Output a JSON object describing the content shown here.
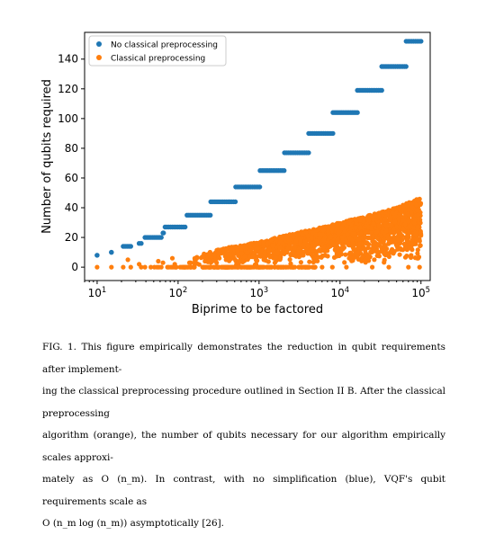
{
  "chart_data": {
    "type": "scatter",
    "xlabel": "Biprime to be factored",
    "ylabel": "Number of qubits required",
    "xscale": "log",
    "xlim": [
      7,
      130000
    ],
    "ylim": [
      -9,
      158
    ],
    "xticks": [
      {
        "value": 10,
        "base": "10",
        "exp": "1"
      },
      {
        "value": 100,
        "base": "10",
        "exp": "2"
      },
      {
        "value": 1000,
        "base": "10",
        "exp": "3"
      },
      {
        "value": 10000,
        "base": "10",
        "exp": "4"
      },
      {
        "value": 100000,
        "base": "10",
        "exp": "5"
      }
    ],
    "yticks": [
      0,
      20,
      40,
      60,
      80,
      100,
      120,
      140
    ],
    "grid": false,
    "legend": {
      "placement": "top-left",
      "entries": [
        {
          "label": "No classical preprocessing",
          "color": "#1f77b4"
        },
        {
          "label": "Classical preprocessing",
          "color": "#ff7f0e"
        }
      ]
    },
    "series": [
      {
        "name": "No classical preprocessing",
        "color": "#1f77b4",
        "segments": [
          {
            "x_from": 10,
            "x_to": 10,
            "y": 8
          },
          {
            "x_from": 15,
            "x_to": 15,
            "y": 10
          },
          {
            "x_from": 21,
            "x_to": 26,
            "y": 14
          },
          {
            "x_from": 33,
            "x_to": 35,
            "y": 16
          },
          {
            "x_from": 39,
            "x_to": 62,
            "y": 20
          },
          {
            "x_from": 65,
            "x_to": 66,
            "y": 23
          },
          {
            "x_from": 69,
            "x_to": 122,
            "y": 27
          },
          {
            "x_from": 129,
            "x_to": 250,
            "y": 35
          },
          {
            "x_from": 253,
            "x_to": 510,
            "y": 44
          },
          {
            "x_from": 515,
            "x_to": 1020,
            "y": 54
          },
          {
            "x_from": 1030,
            "x_to": 2040,
            "y": 65
          },
          {
            "x_from": 2060,
            "x_to": 4090,
            "y": 77
          },
          {
            "x_from": 4100,
            "x_to": 8180,
            "y": 90
          },
          {
            "x_from": 8200,
            "x_to": 16380,
            "y": 104
          },
          {
            "x_from": 16400,
            "x_to": 32760,
            "y": 119
          },
          {
            "x_from": 32800,
            "x_to": 65500,
            "y": 135
          },
          {
            "x_from": 65600,
            "x_to": 100000,
            "y": 152
          }
        ]
      },
      {
        "name": "Classical preprocessing",
        "color": "#ff7f0e",
        "points": [
          [
            10,
            0
          ],
          [
            15,
            0
          ],
          [
            21,
            0
          ],
          [
            26,
            0
          ],
          [
            35,
            0
          ],
          [
            39,
            0
          ],
          [
            46,
            0
          ],
          [
            51,
            0
          ],
          [
            55,
            0
          ],
          [
            58,
            0
          ],
          [
            62,
            0
          ],
          [
            74,
            0
          ],
          [
            77,
            0
          ],
          [
            82,
            0
          ],
          [
            86,
            0
          ],
          [
            91,
            0
          ],
          [
            94,
            0
          ],
          [
            95,
            0
          ],
          [
            106,
            0
          ],
          [
            111,
            0
          ],
          [
            115,
            0
          ],
          [
            118,
            0
          ],
          [
            119,
            0
          ],
          [
            122,
            0
          ],
          [
            123,
            0
          ],
          [
            129,
            0
          ],
          [
            133,
            0
          ],
          [
            141,
            0
          ],
          [
            143,
            0
          ],
          [
            145,
            0
          ],
          [
            155,
            0
          ],
          [
            158,
            0
          ],
          [
            159,
            0
          ],
          [
            24,
            5
          ],
          [
            57,
            4
          ],
          [
            85,
            6
          ],
          [
            143,
            3
          ],
          [
            33,
            2
          ],
          [
            65,
            3
          ],
          [
            91,
            2
          ],
          [
            161,
            2
          ],
          [
            201,
            0
          ],
          [
            215,
            4
          ],
          [
            235,
            5
          ],
          [
            247,
            7
          ],
          [
            299,
            3
          ],
          [
            323,
            6
          ],
          [
            391,
            5
          ],
          [
            437,
            8
          ],
          [
            493,
            6
          ],
          [
            551,
            3
          ],
          [
            667,
            7
          ],
          [
            703,
            9
          ],
          [
            899,
            7
          ],
          [
            1003,
            0
          ],
          [
            1147,
            5
          ],
          [
            1271,
            8
          ],
          [
            1517,
            6
          ],
          [
            2021,
            0
          ],
          [
            2501,
            9
          ],
          [
            3127,
            7
          ],
          [
            4001,
            0
          ],
          [
            5003,
            6
          ],
          [
            6007,
            0
          ],
          [
            8051,
            0
          ],
          [
            12003,
            0
          ],
          [
            25009,
            0
          ],
          [
            40013,
            0
          ],
          [
            70031,
            0
          ],
          [
            96007,
            0
          ]
        ],
        "envelope": [
          [
            130,
            3
          ],
          [
            160,
            7
          ],
          [
            200,
            10
          ],
          [
            300,
            12
          ],
          [
            500,
            14
          ],
          [
            1000,
            17
          ],
          [
            2000,
            21
          ],
          [
            5000,
            26
          ],
          [
            10000,
            30
          ],
          [
            20000,
            34
          ],
          [
            50000,
            40
          ],
          [
            100000,
            47
          ]
        ]
      }
    ]
  },
  "caption": {
    "fig_label": "FIG. 1.",
    "lines": [
      "This figure empirically demonstrates the reduction in qubit requirements after implement-",
      "ing the classical preprocessing procedure outlined in Section II B. After the classical preprocessing",
      "algorithm (orange), the number of qubits necessary for our algorithm empirically scales approxi-",
      "mately as O (n_m).  In contrast, with no simplification (blue), VQF's qubit requirements scale as",
      "O (n_m log (n_m)) asymptotically [26]."
    ]
  }
}
